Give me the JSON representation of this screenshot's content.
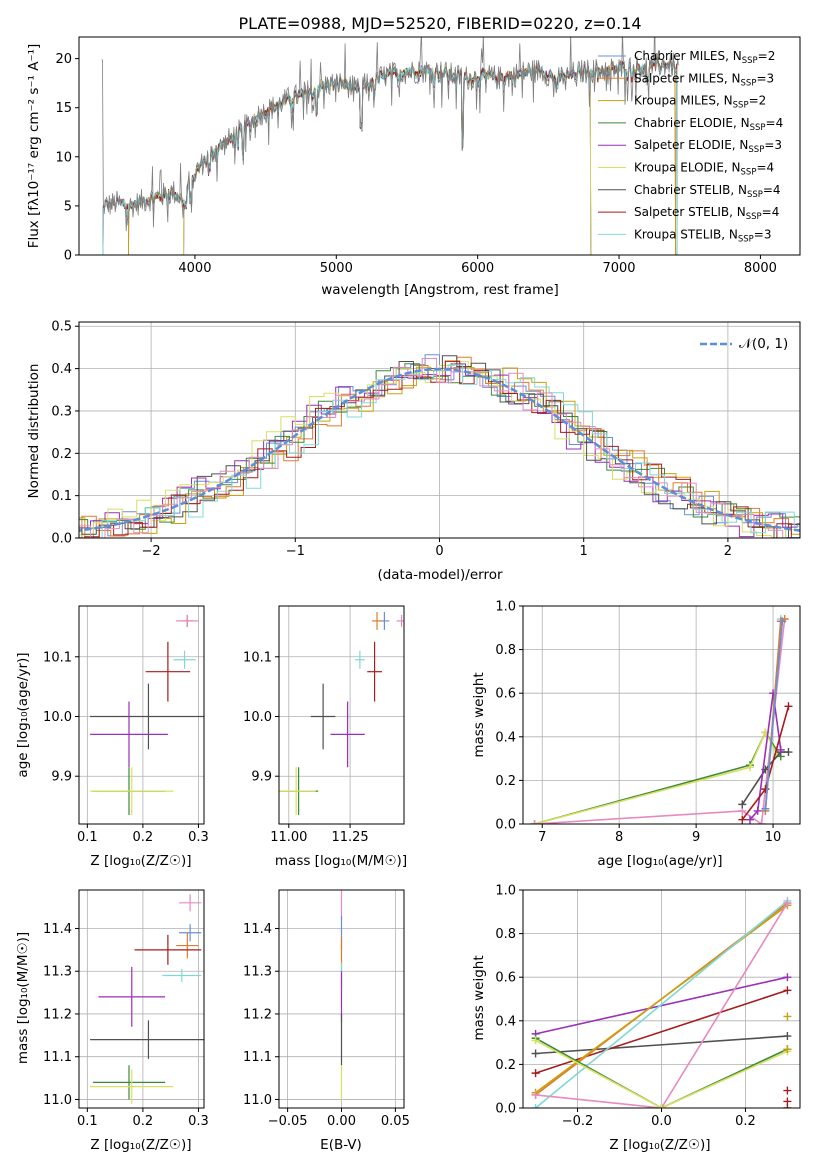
{
  "title": "PLATE=0988, MJD=52520, FIBERID=0220, z=0.14",
  "spectrum": {
    "xlabel": "wavelength [Angstrom, rest frame]",
    "ylabel": "Flux [fλ10⁻¹⁷ erg cm⁻² s⁻¹ A⁻¹]",
    "x_ticks": [
      "4000",
      "5000",
      "6000",
      "7000",
      "8000"
    ],
    "y_ticks": [
      "0",
      "5",
      "10",
      "15",
      "20"
    ],
    "xlim": [
      3180,
      8280
    ],
    "ylim": [
      0,
      22.2
    ],
    "data_color": "#808080",
    "continuum": [
      [
        3350,
        5.0
      ],
      [
        3450,
        5.3
      ],
      [
        3550,
        5.0
      ],
      [
        3650,
        5.6
      ],
      [
        3750,
        6.0
      ],
      [
        3850,
        6.4
      ],
      [
        3920,
        5.5
      ],
      [
        3960,
        7.5
      ],
      [
        4050,
        9.3
      ],
      [
        4150,
        10.7
      ],
      [
        4250,
        11.8
      ],
      [
        4350,
        13.0
      ],
      [
        4450,
        14.3
      ],
      [
        4550,
        15.0
      ],
      [
        4650,
        15.8
      ],
      [
        4750,
        16.3
      ],
      [
        4850,
        17.0
      ],
      [
        4950,
        17.4
      ],
      [
        5050,
        17.5
      ],
      [
        5150,
        16.8
      ],
      [
        5250,
        17.7
      ],
      [
        5350,
        18.3
      ],
      [
        5450,
        18.6
      ],
      [
        5550,
        18.7
      ],
      [
        5650,
        18.8
      ],
      [
        5750,
        18.6
      ],
      [
        5850,
        18.2
      ],
      [
        5950,
        18.0
      ],
      [
        6050,
        18.3
      ],
      [
        6150,
        18.0
      ],
      [
        6250,
        18.3
      ],
      [
        6350,
        18.7
      ],
      [
        6450,
        18.8
      ],
      [
        6550,
        18.0
      ],
      [
        6650,
        18.4
      ],
      [
        6750,
        18.7
      ],
      [
        6850,
        18.8
      ],
      [
        6950,
        18.9
      ],
      [
        7050,
        19.0
      ],
      [
        7150,
        19.1
      ],
      [
        7250,
        19.3
      ],
      [
        7350,
        19.4
      ],
      [
        7420,
        19.5
      ]
    ],
    "absorption_lines": [
      [
        3934,
        5.0
      ],
      [
        3969,
        5.5
      ],
      [
        4102,
        8.6
      ],
      [
        4304,
        10.8
      ],
      [
        4340,
        10.4
      ],
      [
        4861,
        14.6
      ],
      [
        5175,
        13.0
      ],
      [
        5270,
        16.4
      ],
      [
        5892,
        11.3
      ],
      [
        6563,
        16.9
      ],
      [
        7200,
        18.0
      ]
    ],
    "models": [
      {
        "label": "Chabrier MILES, N",
        "sub": "SSP",
        "n": "=2",
        "color": "#6a8fd8",
        "min": 3530,
        "max": 7400
      },
      {
        "label": "Salpeter MILES, N",
        "sub": "SSP",
        "n": "=3",
        "color": "#e07b2a",
        "min": 3530,
        "max": 7400
      },
      {
        "label": "Kroupa MILES, N",
        "sub": "SSP",
        "n": "=2",
        "color": "#c8a010",
        "min": 3530,
        "max": 7400
      },
      {
        "label": "Chabrier ELODIE, N",
        "sub": "SSP",
        "n": "=4",
        "color": "#3a8a3a",
        "min": 3920,
        "max": 6800
      },
      {
        "label": "Salpeter ELODIE, N",
        "sub": "SSP",
        "n": "=3",
        "color": "#9a2fb8",
        "min": 3920,
        "max": 6800
      },
      {
        "label": "Kroupa ELODIE, N",
        "sub": "SSP",
        "n": "=4",
        "color": "#d8e060",
        "min": 3920,
        "max": 6800
      },
      {
        "label": "Chabrier STELIB, N",
        "sub": "SSP",
        "n": "=4",
        "color": "#505050",
        "min": 3350,
        "max": 7410
      },
      {
        "label": "Salpeter STELIB, N",
        "sub": "SSP",
        "n": "=4",
        "color": "#a51c1c",
        "min": 3350,
        "max": 7410
      },
      {
        "label": "Kroupa STELIB, N",
        "sub": "SSP",
        "n": "=3",
        "color": "#7fd8d8",
        "min": 3350,
        "max": 7410
      }
    ]
  },
  "residuals": {
    "xlabel": "(data-model)/error",
    "ylabel": "Normed distribution",
    "x_ticks": [
      "−2",
      "−1",
      "0",
      "1",
      "2"
    ],
    "y_ticks": [
      "0.0",
      "0.1",
      "0.2",
      "0.3",
      "0.4",
      "0.5"
    ],
    "xlim": [
      -2.5,
      2.5
    ],
    "ylim": [
      0,
      0.51
    ],
    "legend_label": "𝒩(0, 1)",
    "gauss_color": "#5b8fd8",
    "hist_colors": [
      "#6a8fd8",
      "#e07b2a",
      "#c8a010",
      "#3a8a3a",
      "#9a2fb8",
      "#d8e060",
      "#505050",
      "#a51c1c",
      "#7fd8d8",
      "#e68ac0"
    ]
  },
  "age_vs_Z": {
    "xlabel": "Z [log₁₀(Z/Z☉)]",
    "ylabel": "age  [log₁₀(age/yr)]",
    "x_ticks": [
      "0.1",
      "0.2",
      "0.3"
    ],
    "y_ticks": [
      "9.9",
      "10.0",
      "10.1"
    ],
    "xlim": [
      0.085,
      0.31
    ],
    "ylim": [
      9.82,
      10.185
    ],
    "points": [
      {
        "x": 0.28,
        "xe": 0.01,
        "y": 10.16,
        "ye": 0.01,
        "color": "#6a8fd8"
      },
      {
        "x": 0.28,
        "xe": 0.02,
        "y": 10.16,
        "ye": 0.01,
        "color": "#e07b2a"
      },
      {
        "x": 0.28,
        "xe": 0.02,
        "y": 10.16,
        "ye": 0.01,
        "color": "#e68ac0"
      },
      {
        "x": 0.275,
        "xe": 0.02,
        "y": 10.095,
        "ye": 0.015,
        "color": "#7fd8d8"
      },
      {
        "x": 0.245,
        "xe": 0.04,
        "y": 10.075,
        "ye": 0.05,
        "color": "#a51c1c"
      },
      {
        "x": 0.21,
        "xe": 0.105,
        "y": 10.0,
        "ye": 0.055,
        "color": "#505050"
      },
      {
        "x": 0.175,
        "xe": 0.07,
        "y": 9.97,
        "ye": 0.055,
        "color": "#9a2fb8"
      },
      {
        "x": 0.175,
        "xe": 0.065,
        "y": 9.875,
        "ye": 0.04,
        "color": "#3a8a3a"
      },
      {
        "x": 0.18,
        "xe": 0.075,
        "y": 9.875,
        "ye": 0.04,
        "color": "#d8e060"
      }
    ]
  },
  "age_vs_mass": {
    "xlabel": "mass [log₁₀(M/M☉)]",
    "x_ticks": [
      "11.00",
      "11.25"
    ],
    "y_ticks": [
      "9.9",
      "10.0",
      "10.1"
    ],
    "xlim": [
      10.96,
      11.47
    ],
    "ylim": [
      9.82,
      10.185
    ],
    "points": [
      {
        "x": 11.39,
        "xe": 0.02,
        "y": 10.16,
        "ye": 0.015,
        "color": "#6a8fd8"
      },
      {
        "x": 11.36,
        "xe": 0.02,
        "y": 10.16,
        "ye": 0.015,
        "color": "#e07b2a"
      },
      {
        "x": 11.46,
        "xe": 0.02,
        "y": 10.16,
        "ye": 0.01,
        "color": "#e68ac0"
      },
      {
        "x": 11.29,
        "xe": 0.02,
        "y": 10.095,
        "ye": 0.015,
        "color": "#7fd8d8"
      },
      {
        "x": 11.35,
        "xe": 0.03,
        "y": 10.075,
        "ye": 0.05,
        "color": "#a51c1c"
      },
      {
        "x": 11.14,
        "xe": 0.05,
        "y": 10.0,
        "ye": 0.055,
        "color": "#505050"
      },
      {
        "x": 11.24,
        "xe": 0.07,
        "y": 9.97,
        "ye": 0.055,
        "color": "#9a2fb8"
      },
      {
        "x": 11.04,
        "xe": 0.08,
        "y": 9.875,
        "ye": 0.04,
        "color": "#3a8a3a"
      },
      {
        "x": 11.03,
        "xe": 0.08,
        "y": 9.875,
        "ye": 0.04,
        "color": "#d8e060"
      }
    ]
  },
  "weight_vs_age": {
    "xlabel": "age  [log₁₀(age/yr)]",
    "ylabel": "mass weight",
    "x_ticks": [
      "7",
      "8",
      "9",
      "10"
    ],
    "y_ticks": [
      "0.0",
      "0.2",
      "0.4",
      "0.6",
      "0.8",
      "1.0"
    ],
    "xlim": [
      6.75,
      10.35
    ],
    "ylim": [
      0,
      1.0
    ],
    "series": [
      {
        "color": "#3a8a3a",
        "points": [
          [
            6.9,
            0.0
          ],
          [
            9.7,
            0.27
          ],
          [
            9.9,
            0.42
          ],
          [
            10.1,
            0.31
          ]
        ]
      },
      {
        "color": "#d8e060",
        "points": [
          [
            6.9,
            0.0
          ],
          [
            9.7,
            0.26
          ],
          [
            9.9,
            0.42
          ],
          [
            10.05,
            0.32
          ]
        ]
      },
      {
        "color": "#e68ac0",
        "points": [
          [
            6.9,
            0.0
          ],
          [
            9.6,
            0.06
          ],
          [
            9.85,
            0.0
          ],
          [
            10.15,
            0.94
          ]
        ]
      },
      {
        "color": "#505050",
        "points": [
          [
            9.6,
            0.09
          ],
          [
            9.9,
            0.25
          ],
          [
            10.1,
            0.33
          ],
          [
            10.2,
            0.33
          ]
        ]
      },
      {
        "color": "#9a2fb8",
        "points": [
          [
            9.7,
            0.02
          ],
          [
            9.8,
            0.06
          ],
          [
            10.0,
            0.6
          ],
          [
            10.1,
            0.34
          ]
        ]
      },
      {
        "color": "#a51c1c",
        "points": [
          [
            9.6,
            0.02
          ],
          [
            9.9,
            0.16
          ],
          [
            10.2,
            0.54
          ]
        ]
      },
      {
        "color": "#7fd8d8",
        "points": [
          [
            9.9,
            0.06
          ],
          [
            10.1,
            0.94
          ]
        ]
      },
      {
        "color": "#e07b2a",
        "points": [
          [
            9.9,
            0.06
          ],
          [
            10.1,
            0.93
          ],
          [
            10.15,
            0.94
          ]
        ]
      },
      {
        "color": "#6a8fd8",
        "points": [
          [
            9.9,
            0.07
          ],
          [
            10.12,
            0.93
          ]
        ]
      }
    ]
  },
  "mass_vs_Z": {
    "xlabel": "Z [log₁₀(Z/Z☉)]",
    "ylabel": "mass [log₁₀(M/M☉)]",
    "x_ticks": [
      "0.1",
      "0.2",
      "0.3"
    ],
    "y_ticks": [
      "11.0",
      "11.1",
      "11.2",
      "11.3",
      "11.4"
    ],
    "xlim": [
      0.085,
      0.31
    ],
    "ylim": [
      10.98,
      11.49
    ],
    "points": [
      {
        "x": 0.285,
        "xe": 0.02,
        "y": 11.46,
        "ye": 0.02,
        "color": "#e68ac0"
      },
      {
        "x": 0.285,
        "xe": 0.02,
        "y": 11.39,
        "ye": 0.02,
        "color": "#6a8fd8"
      },
      {
        "x": 0.28,
        "xe": 0.02,
        "y": 11.36,
        "ye": 0.03,
        "color": "#e07b2a"
      },
      {
        "x": 0.245,
        "xe": 0.06,
        "y": 11.35,
        "ye": 0.035,
        "color": "#a51c1c"
      },
      {
        "x": 0.27,
        "xe": 0.035,
        "y": 11.29,
        "ye": 0.015,
        "color": "#7fd8d8"
      },
      {
        "x": 0.18,
        "xe": 0.06,
        "y": 11.24,
        "ye": 0.07,
        "color": "#9a2fb8"
      },
      {
        "x": 0.21,
        "xe": 0.105,
        "y": 11.14,
        "ye": 0.045,
        "color": "#505050"
      },
      {
        "x": 0.175,
        "xe": 0.065,
        "y": 11.04,
        "ye": 0.04,
        "color": "#3a8a3a"
      },
      {
        "x": 0.18,
        "xe": 0.075,
        "y": 11.03,
        "ye": 0.04,
        "color": "#d8e060"
      }
    ]
  },
  "mass_vs_ebv": {
    "xlabel": "E(B-V)",
    "x_ticks": [
      "−0.05",
      "0.00",
      "0.05"
    ],
    "y_ticks": [
      "11.0",
      "11.1",
      "11.2",
      "11.3",
      "11.4"
    ],
    "xlim": [
      -0.058,
      0.058
    ],
    "ylim": [
      10.98,
      11.49
    ],
    "segments": [
      {
        "y1": 11.42,
        "y2": 11.49,
        "color": "#e68ac0"
      },
      {
        "y1": 11.35,
        "y2": 11.43,
        "color": "#6a8fd8"
      },
      {
        "y1": 11.3,
        "y2": 11.38,
        "color": "#e07b2a"
      },
      {
        "y1": 11.26,
        "y2": 11.32,
        "color": "#7fd8d8"
      },
      {
        "y1": 11.18,
        "y2": 11.3,
        "color": "#9a2fb8"
      },
      {
        "y1": 11.08,
        "y2": 11.2,
        "color": "#505050"
      },
      {
        "y1": 11.0,
        "y2": 11.08,
        "color": "#d8e060"
      }
    ]
  },
  "weight_vs_Z": {
    "xlabel": "Z [log₁₀(Z/Z☉)]",
    "ylabel": "mass weight",
    "x_ticks": [
      "−0.2",
      "0.0",
      "0.2"
    ],
    "y_ticks": [
      "0.0",
      "0.2",
      "0.4",
      "0.6",
      "0.8",
      "1.0"
    ],
    "xlim": [
      -0.33,
      0.33
    ],
    "ylim": [
      0,
      1.0
    ],
    "series": [
      {
        "color": "#9a2fb8",
        "points": [
          [
            -0.3,
            0.34
          ],
          [
            0.3,
            0.6
          ]
        ]
      },
      {
        "color": "#505050",
        "points": [
          [
            -0.3,
            0.25
          ],
          [
            0.3,
            0.33
          ]
        ]
      },
      {
        "color": "#a51c1c",
        "points": [
          [
            -0.3,
            0.16
          ],
          [
            0.3,
            0.54
          ]
        ]
      },
      {
        "color": "#e07b2a",
        "points": [
          [
            -0.3,
            0.06
          ],
          [
            0.3,
            0.94
          ]
        ]
      },
      {
        "color": "#c8a010",
        "points": [
          [
            -0.3,
            0.07
          ],
          [
            0.3,
            0.93
          ]
        ]
      },
      {
        "color": "#7fd8d8",
        "points": [
          [
            -0.3,
            0.0
          ],
          [
            0.3,
            0.95
          ]
        ]
      },
      {
        "color": "#e68ac0",
        "points": [
          [
            -0.3,
            0.06
          ],
          [
            0.0,
            0.0
          ],
          [
            0.3,
            0.94
          ]
        ]
      },
      {
        "color": "#3a8a3a",
        "points": [
          [
            -0.3,
            0.32
          ],
          [
            0.0,
            0.0
          ],
          [
            0.3,
            0.27
          ]
        ]
      },
      {
        "color": "#d8e060",
        "points": [
          [
            -0.3,
            0.31
          ],
          [
            0.0,
            0.0
          ],
          [
            0.3,
            0.26
          ]
        ]
      }
    ],
    "right_markers": [
      {
        "y": 0.0,
        "color": "#a51c1c"
      },
      {
        "y": 0.03,
        "color": "#a51c1c"
      },
      {
        "y": 0.08,
        "color": "#a51c1c"
      },
      {
        "y": 0.27,
        "color": "#c8a010"
      },
      {
        "y": 0.42,
        "color": "#c8a010"
      }
    ]
  }
}
